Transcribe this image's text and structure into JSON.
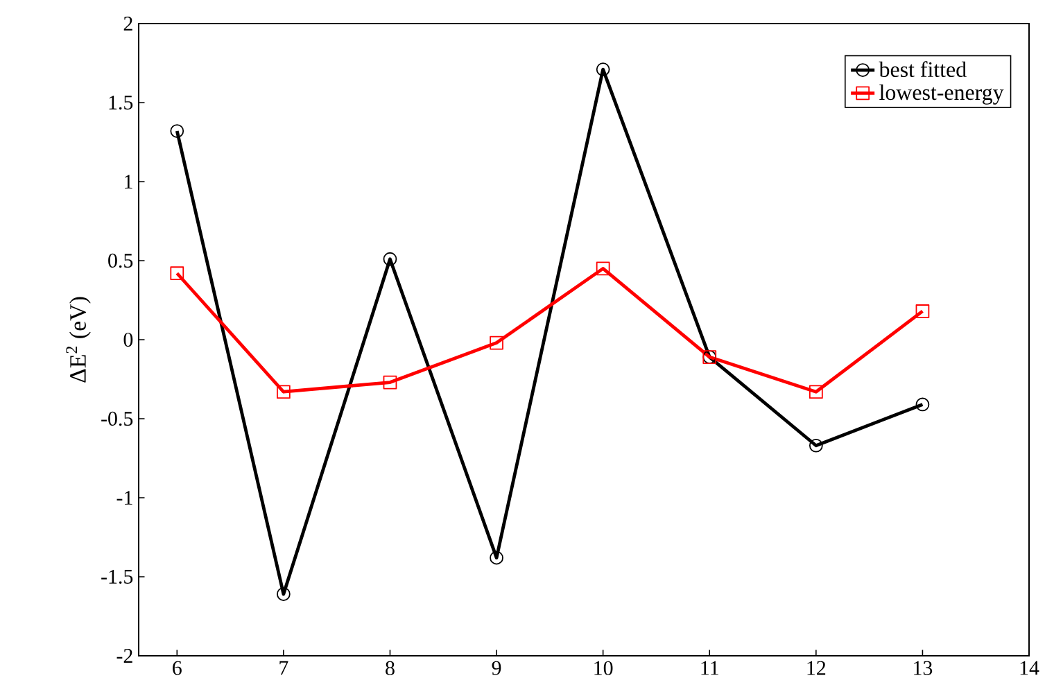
{
  "chart_data": {
    "type": "line",
    "ylabel": "ΔE$^{2}$ (eV)",
    "x": [
      6,
      7,
      8,
      9,
      10,
      11,
      12,
      13
    ],
    "series": [
      {
        "name": "best fitted",
        "color": "#000000",
        "marker": "circle",
        "values": [
          1.32,
          -1.61,
          0.51,
          -1.38,
          1.71,
          -0.11,
          -0.67,
          -0.41
        ]
      },
      {
        "name": "lowest-energy",
        "color": "#ff0000",
        "marker": "square",
        "values": [
          0.42,
          -0.33,
          -0.27,
          -0.02,
          0.45,
          -0.11,
          -0.33,
          0.18
        ]
      }
    ],
    "xlim": [
      5.64,
      14
    ],
    "ylim": [
      -2,
      2
    ],
    "xticks": [
      6,
      7,
      8,
      9,
      10,
      11,
      12,
      13,
      14
    ],
    "yticks": [
      -2,
      -1.5,
      -1,
      -0.5,
      0,
      0.5,
      1,
      1.5,
      2
    ],
    "grid": false,
    "legend": "top right",
    "line_style": "solid"
  }
}
